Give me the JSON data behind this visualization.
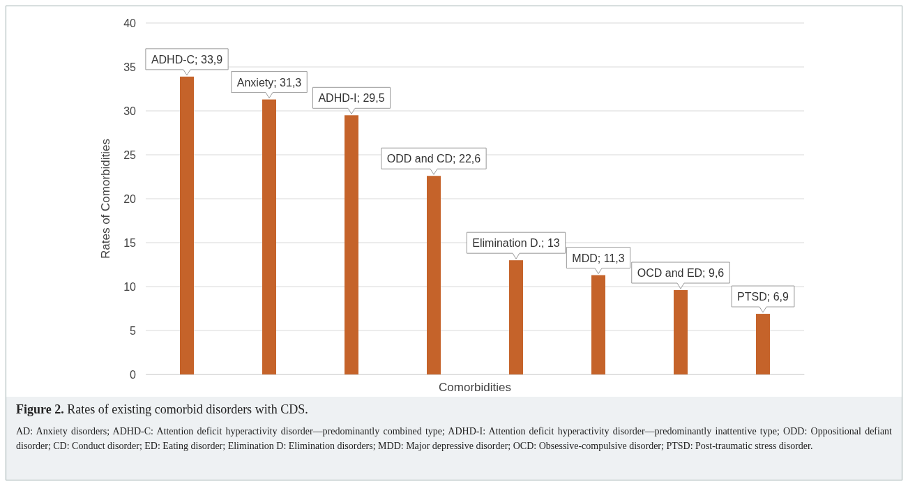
{
  "chart_data": {
    "type": "bar",
    "title": "Figure 2. Rates of existing comorbid disorders with CDS.",
    "xlabel": "Comorbidities",
    "ylabel": "Rates of Comorbidities",
    "categories": [
      null,
      null,
      null,
      null,
      null,
      null,
      null,
      null
    ],
    "values": [
      33.9,
      31.3,
      29.5,
      22.6,
      13,
      11.3,
      9.6,
      6.9
    ],
    "value_labels": [
      "ADHD-C; 33,9",
      "Anxiety; 31,3",
      "ADHD-I; 29,5",
      "ODD and CD; 22,6",
      "Elimination D.; 13",
      "MDD; 11,3",
      "OCD and ED; 9,6",
      "PTSD; 6,9"
    ],
    "color": "#c5632a",
    "ylim": [
      0,
      40
    ],
    "yticks": [
      0,
      5,
      10,
      15,
      20,
      25,
      30,
      35,
      40
    ],
    "grid": "y",
    "annotations": [
      "AD: Anxiety disorders; ADHD-C: Attention deficit hyperactivity disorder—predominantly combined type; ADHD-I: Attention deficit hyperactivity disorder—predominantly inattentive type; ODD: Oppositional defiant disorder; CD: Conduct disorder; ED: Eating disorder; Elimination D: Elimination disorders; MDD: Major depressive disorder; OCD: Obsessive-compulsive disorder; PTSD: Post-traumatic stress disorder."
    ]
  }
}
